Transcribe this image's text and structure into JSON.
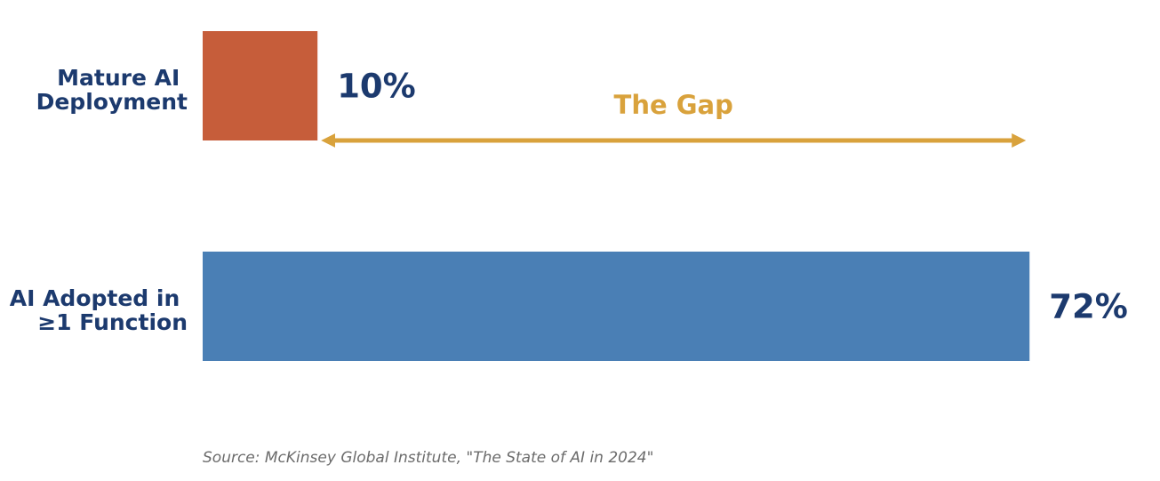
{
  "chart_data": {
    "type": "bar",
    "orientation": "horizontal",
    "categories": [
      "Mature AI Deployment",
      "AI Adopted in ≥1 Function"
    ],
    "category_lines": [
      [
        "Mature AI",
        "Deployment"
      ],
      [
        "AI Adopted in",
        "≥1 Function"
      ]
    ],
    "values": [
      10,
      72
    ],
    "value_labels": [
      "10%",
      "72%"
    ],
    "colors": [
      "#c65d3a",
      "#4a7fb5"
    ],
    "xlim": [
      0,
      100
    ],
    "title": "",
    "xlabel": "",
    "ylabel": "",
    "grid": false,
    "annotation": {
      "text": "The Gap",
      "from_value": 10,
      "to_value": 72,
      "color": "#d9a23c"
    },
    "source": "Source: McKinsey Global Institute, \"The State of AI in 2024\""
  }
}
